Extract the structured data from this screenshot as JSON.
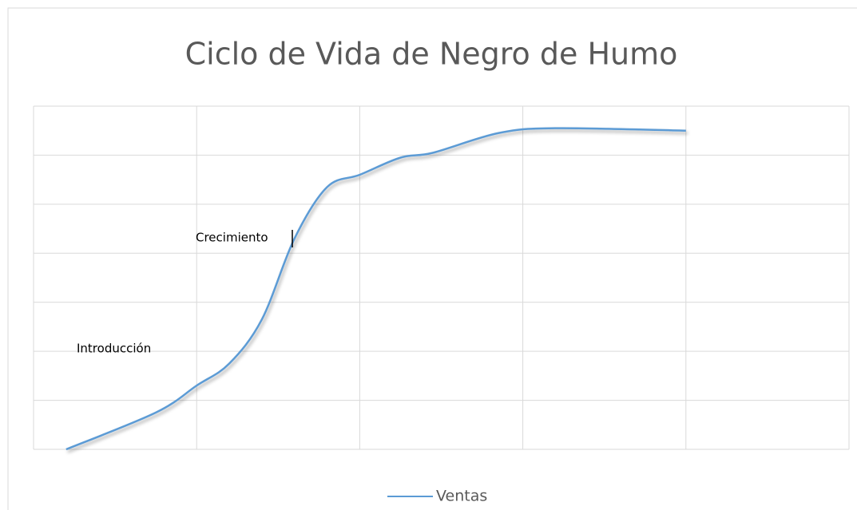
{
  "chart_data": {
    "type": "line",
    "title": "Ciclo de Vida de Negro de Humo",
    "annotations": [
      "Introducción",
      "Crecimiento"
    ],
    "series": [
      {
        "name": "Ventas",
        "color": "#5b9bd5",
        "x": [
          0.2,
          0.75,
          1,
          1.2,
          1.4,
          1.6,
          1.8,
          2,
          2.25,
          2.45,
          2.85,
          3.2,
          4
        ],
        "values": [
          0,
          0.75,
          1.3,
          1.75,
          2.65,
          4.3,
          5.35,
          5.6,
          5.95,
          6.05,
          6.45,
          6.55,
          6.5
        ]
      }
    ],
    "xlim": [
      0,
      5
    ],
    "xticks": [
      0,
      1,
      2,
      3,
      4,
      5
    ],
    "ylim": [
      0,
      7
    ],
    "yticks": [
      0,
      1,
      2,
      3,
      4,
      5,
      6,
      7
    ],
    "grid": true,
    "legend": "bottom"
  }
}
